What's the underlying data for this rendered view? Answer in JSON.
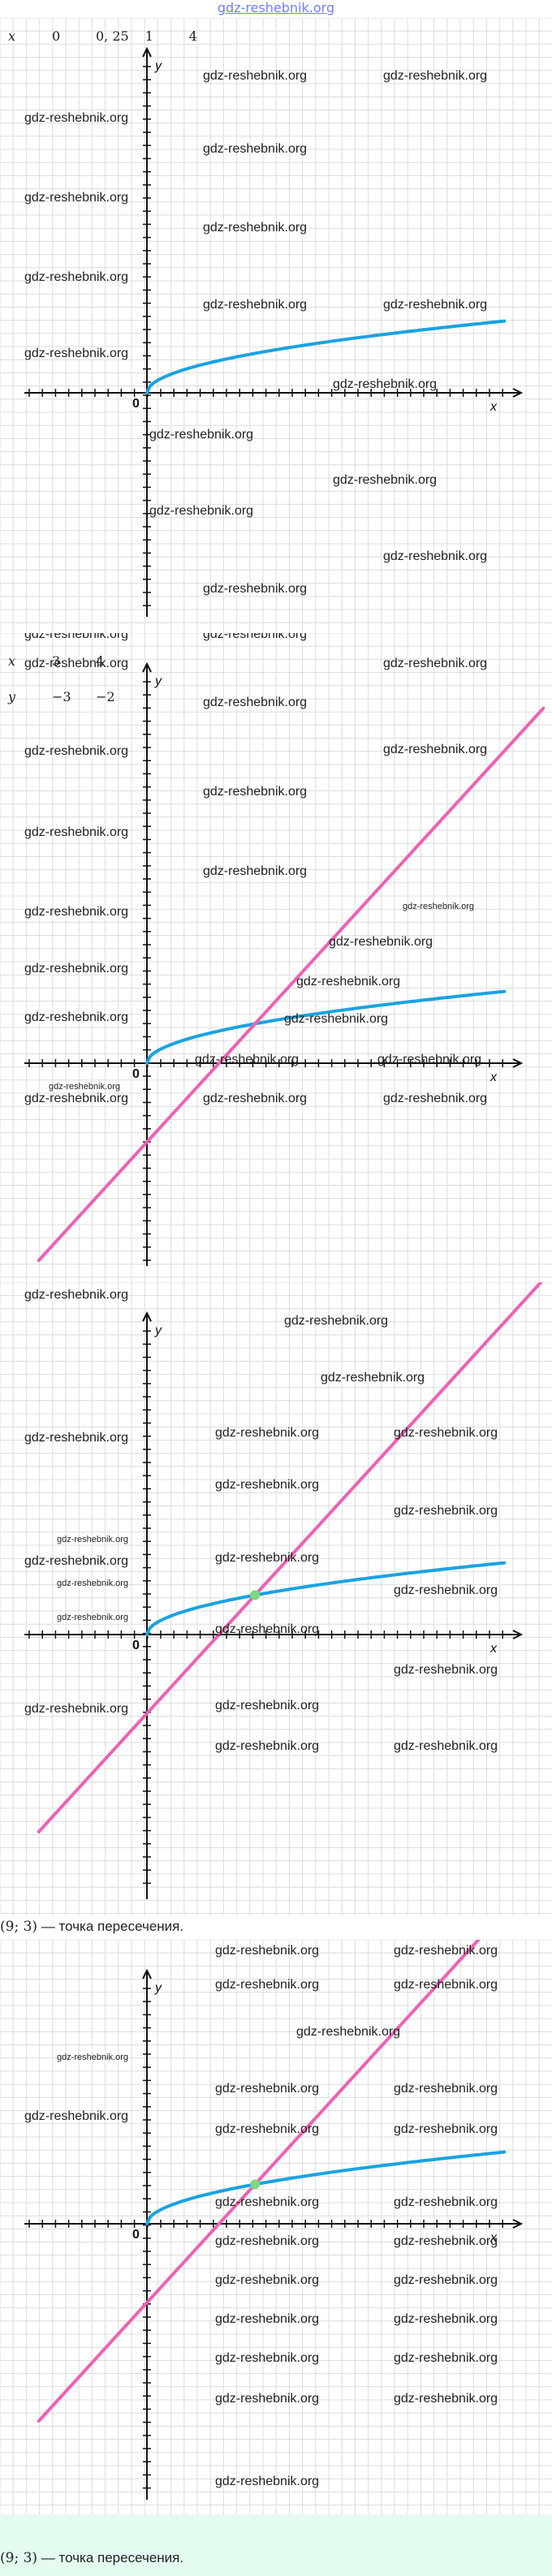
{
  "header": {
    "site": "gdz-reshebnik.org"
  },
  "table1": {
    "rows": [
      {
        "label": "x",
        "cells": [
          "0",
          "0, 25",
          "1",
          "4"
        ]
      }
    ]
  },
  "table2": {
    "rows": [
      {
        "label": "x",
        "cells": [
          "3",
          "4"
        ]
      },
      {
        "label": "y",
        "cells": [
          "−3",
          "−2"
        ]
      }
    ]
  },
  "answer": {
    "point": "(9; 3)",
    "text": "— точка пересечения."
  },
  "axes": {
    "x": "x",
    "y": "y",
    "origin": "0"
  },
  "watermark": "gdz-reshebnik.org",
  "colors": {
    "sqrt_curve": "#1aa3e0",
    "line": "#ec62b2",
    "intersection": "#7dd87f",
    "grid": "#dcdcdc",
    "mint": "#e4fbef"
  },
  "chart_data": [
    {
      "type": "line",
      "series": [
        {
          "expression": "y = √x",
          "x": [
            0,
            0.25,
            1,
            4,
            9,
            16,
            36
          ],
          "y": [
            0,
            0.5,
            1,
            2,
            3,
            4,
            6
          ]
        }
      ],
      "xlim": [
        -12,
        38
      ],
      "ylim": [
        -16,
        20
      ],
      "grid": true
    },
    {
      "type": "line",
      "series": [
        {
          "expression": "y = √x",
          "x": [
            0,
            1,
            4,
            9,
            16,
            36
          ],
          "y": [
            0,
            1,
            2,
            3,
            4,
            6
          ]
        },
        {
          "expression": "y = x − 6",
          "x": [
            -9,
            33
          ],
          "y": [
            -15,
            27
          ]
        }
      ],
      "xlim": [
        -12,
        38
      ],
      "ylim": [
        -16,
        20
      ],
      "grid": true
    },
    {
      "type": "line",
      "series": [
        {
          "expression": "y = √x",
          "x": [
            0,
            1,
            4,
            9,
            16,
            36
          ],
          "y": [
            0,
            1,
            2,
            3,
            4,
            6
          ]
        },
        {
          "expression": "y = x − 6",
          "x": [
            -9,
            33
          ],
          "y": [
            -15,
            27
          ]
        }
      ],
      "intersection": [
        9,
        3
      ],
      "xlim": [
        -12,
        38
      ],
      "ylim": [
        -16,
        20
      ],
      "grid": true
    },
    {
      "type": "line",
      "series": [
        {
          "expression": "y = √x",
          "x": [
            0,
            1,
            4,
            9,
            16,
            36
          ],
          "y": [
            0,
            1,
            2,
            3,
            4,
            6
          ]
        },
        {
          "expression": "y = x − 6",
          "x": [
            -9,
            33
          ],
          "y": [
            -15,
            27
          ]
        }
      ],
      "intersection": [
        9,
        3
      ],
      "xlim": [
        -12,
        38
      ],
      "ylim": [
        -16,
        20
      ],
      "grid": true
    }
  ]
}
